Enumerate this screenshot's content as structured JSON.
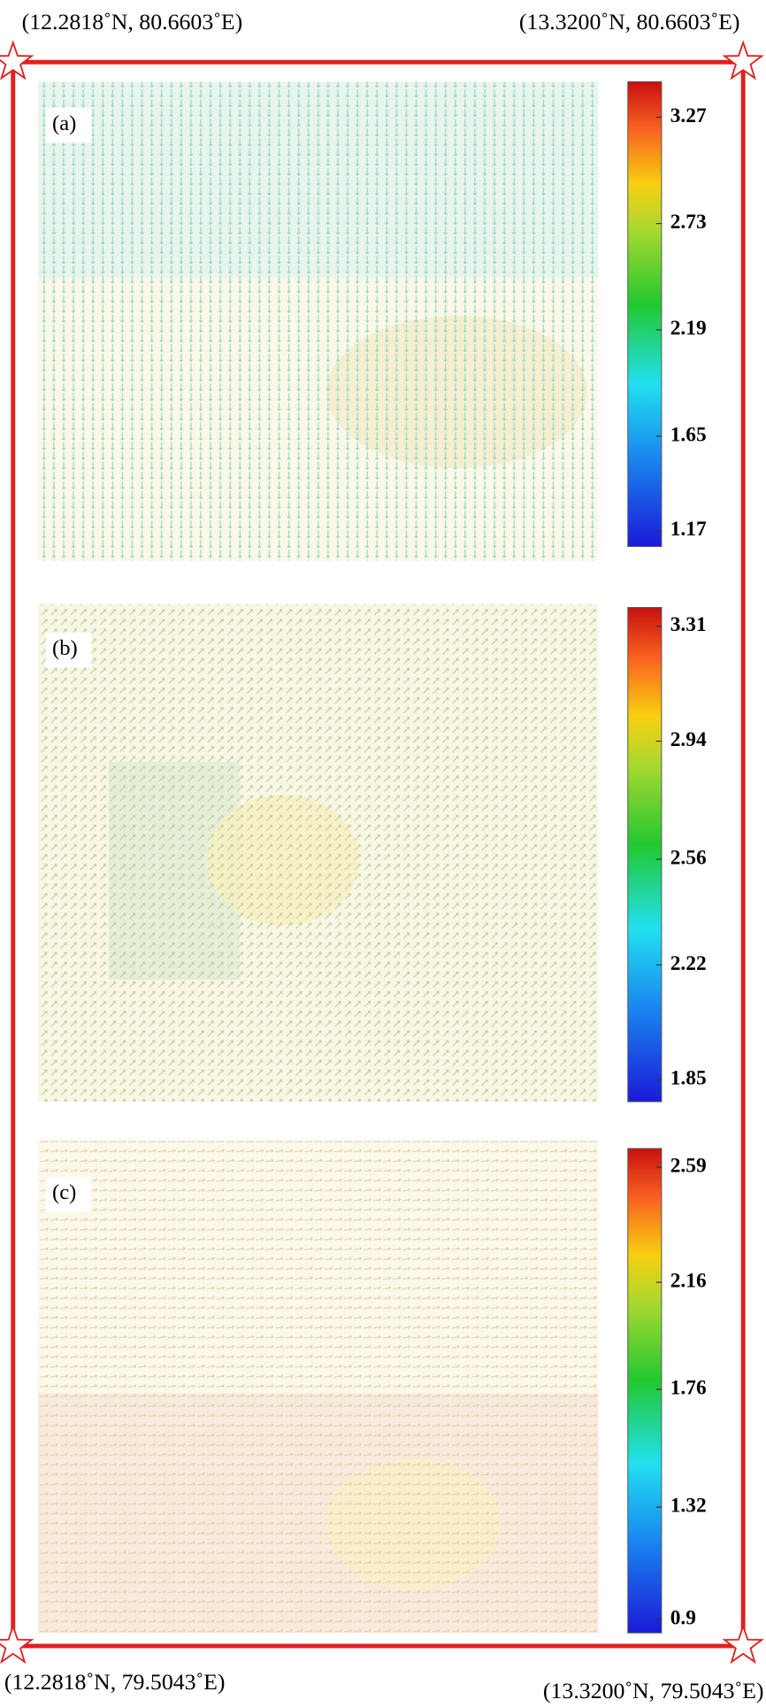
{
  "corners": {
    "top_left": "(12.2818˚N, 80.6603˚E)",
    "top_right": "(13.3200˚N, 80.6603˚E)",
    "bottom_left": "(12.2818˚N, 79.5043˚E)",
    "bottom_right": "(13.3200˚N, 79.5043˚E)"
  },
  "panels": [
    {
      "label": "(a)",
      "colorbar": {
        "range": [
          1.09,
          3.45
        ],
        "ticks": [
          3.27,
          2.73,
          2.19,
          1.65,
          1.17
        ]
      }
    },
    {
      "label": "(b)",
      "colorbar": {
        "range": [
          1.78,
          3.37
        ],
        "ticks": [
          3.31,
          2.94,
          2.56,
          2.22,
          1.85
        ]
      }
    },
    {
      "label": "(c)",
      "colorbar": {
        "range": [
          0.85,
          2.66
        ],
        "ticks": [
          2.59,
          2.16,
          1.76,
          1.32,
          0.9
        ]
      }
    }
  ]
}
